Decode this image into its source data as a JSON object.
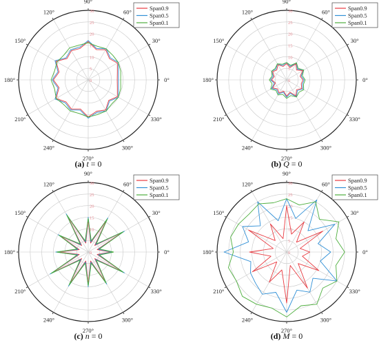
{
  "figure": {
    "series_colors": {
      "Span0.9": "#e8393f",
      "Span0.5": "#2f8fd6",
      "Span0.1": "#4cae3c"
    },
    "panels": [
      {
        "label_letter": "(a)",
        "label_var": "t",
        "label_rest": " = 0"
      },
      {
        "label_letter": "(b)",
        "label_var": "Q",
        "label_rest": " = 0"
      },
      {
        "label_letter": "(c)",
        "label_var": "n",
        "label_rest": " = 0"
      },
      {
        "label_letter": "(d)",
        "label_var": "M",
        "label_rest": " = 0"
      }
    ]
  },
  "chart_data": [
    {
      "type": "polar-line",
      "angle_ticks": [
        "0°",
        "30°",
        "60°",
        "90°",
        "120°",
        "150°",
        "180°",
        "210°",
        "240°",
        "270°",
        "300°",
        "330°"
      ],
      "radial_ticks": [
        0,
        5,
        10,
        15,
        20,
        25,
        30
      ],
      "rlim": [
        0,
        30
      ],
      "legend": "top-right",
      "series": [
        {
          "name": "Span0.9",
          "r": [
            12.5,
            13,
            14.5,
            13,
            15,
            13.5,
            16.5,
            14,
            14.5,
            13,
            16,
            13,
            15,
            13,
            16,
            13.5,
            14.5,
            13,
            16,
            14,
            15,
            12.5,
            14.5,
            13,
            12.5
          ]
        },
        {
          "name": "Span0.5",
          "r": [
            13,
            13.5,
            15,
            13.5,
            15.5,
            14,
            17,
            14.5,
            15,
            13.5,
            16.5,
            13.5,
            15.5,
            13.5,
            16.5,
            14,
            15,
            13.5,
            16.5,
            14.5,
            15.5,
            13,
            15,
            13.5,
            13
          ]
        },
        {
          "name": "Span0.1",
          "r": [
            14,
            14.5,
            15,
            15,
            15.5,
            15,
            16,
            15.5,
            16,
            15,
            15.5,
            15,
            16,
            15,
            16,
            15,
            15.5,
            15,
            16,
            15.5,
            15.5,
            14.5,
            15,
            14.5,
            14
          ]
        }
      ]
    },
    {
      "type": "polar-line",
      "angle_ticks": [
        "0°",
        "30°",
        "60°",
        "90°",
        "120°",
        "150°",
        "180°",
        "210°",
        "240°",
        "270°",
        "300°",
        "330°"
      ],
      "radial_ticks": [
        0,
        5,
        10,
        15,
        20,
        25,
        30
      ],
      "rlim": [
        0,
        30
      ],
      "legend": "top-right",
      "series": [
        {
          "name": "Span0.9",
          "r": [
            7,
            6,
            8,
            6,
            8,
            5.5,
            7,
            6,
            7.5,
            6,
            7,
            5.5,
            6.5,
            5,
            7,
            5.5,
            6.5,
            5,
            7,
            5.5,
            8,
            6,
            7.5,
            6.5,
            7
          ]
        },
        {
          "name": "Span0.5",
          "r": [
            7.5,
            6.5,
            8.5,
            6.5,
            8.5,
            6,
            7.5,
            6.5,
            8,
            6.5,
            7.5,
            6,
            7,
            5.5,
            7.5,
            6,
            7,
            5.5,
            7.5,
            6,
            8.5,
            6.5,
            8,
            7,
            7.5
          ]
        },
        {
          "name": "Span0.1",
          "r": [
            8,
            7,
            8.5,
            7,
            8.5,
            6.5,
            7.5,
            7,
            8,
            7,
            7.5,
            6.5,
            7.5,
            6.5,
            8,
            6.5,
            7.5,
            6.5,
            8,
            7,
            8.5,
            7.5,
            8.5,
            7.5,
            8
          ]
        }
      ]
    },
    {
      "type": "polar-line",
      "angle_ticks": [
        "0°",
        "30°",
        "60°",
        "90°",
        "120°",
        "150°",
        "180°",
        "210°",
        "240°",
        "270°",
        "300°",
        "330°"
      ],
      "radial_ticks": [
        0,
        5,
        10,
        15,
        20,
        25,
        30
      ],
      "rlim": [
        0,
        30
      ],
      "legend": "top-right",
      "series": [
        {
          "name": "Span0.9",
          "r": [
            10,
            4,
            17,
            4,
            16,
            4,
            14,
            4,
            18,
            4,
            14,
            4,
            13,
            4,
            18,
            4,
            16,
            4,
            14,
            4,
            15,
            4,
            17,
            4,
            10
          ]
        },
        {
          "name": "Span0.5",
          "r": [
            10.5,
            4.5,
            18,
            4.5,
            17,
            4.5,
            15,
            4.5,
            19,
            4.5,
            15,
            4.5,
            14,
            4.5,
            19,
            4.5,
            17,
            4.5,
            15,
            4.5,
            16,
            4.5,
            18,
            4.5,
            10.5
          ]
        },
        {
          "name": "Span0.1",
          "r": [
            11,
            5,
            17.5,
            5,
            16.5,
            5,
            14.5,
            5,
            18.5,
            5,
            14.5,
            5,
            13.5,
            5,
            18.5,
            5,
            16.5,
            5,
            14.5,
            5,
            15.5,
            5,
            17.5,
            5,
            11
          ]
        }
      ]
    },
    {
      "type": "polar-line",
      "angle_ticks": [
        "0°",
        "30°",
        "60°",
        "90°",
        "120°",
        "150°",
        "180°",
        "210°",
        "240°",
        "270°",
        "300°",
        "330°"
      ],
      "radial_ticks": [
        0,
        5,
        10,
        15,
        20,
        25,
        30
      ],
      "rlim": [
        0,
        30
      ],
      "legend": "top-right",
      "series": [
        {
          "name": "Span0.9",
          "r": [
            10,
            6,
            18,
            6,
            15,
            8,
            20,
            6,
            14,
            7,
            19,
            6,
            16,
            7,
            17,
            6,
            15,
            8,
            22,
            6,
            18,
            7,
            16,
            7,
            10
          ]
        },
        {
          "name": "Span0.5",
          "r": [
            19,
            14,
            24,
            13,
            26,
            15,
            23,
            14,
            25,
            16,
            22,
            17,
            27,
            16,
            18,
            19,
            21,
            18,
            26,
            17,
            20,
            16,
            25,
            15,
            19
          ]
        },
        {
          "name": "Span0.1",
          "r": [
            25,
            22,
            26,
            20,
            25,
            21,
            23,
            22,
            24,
            23,
            24,
            25,
            23,
            26,
            25,
            27,
            26,
            25,
            28,
            24,
            26,
            22,
            25,
            22,
            25
          ]
        }
      ]
    }
  ]
}
